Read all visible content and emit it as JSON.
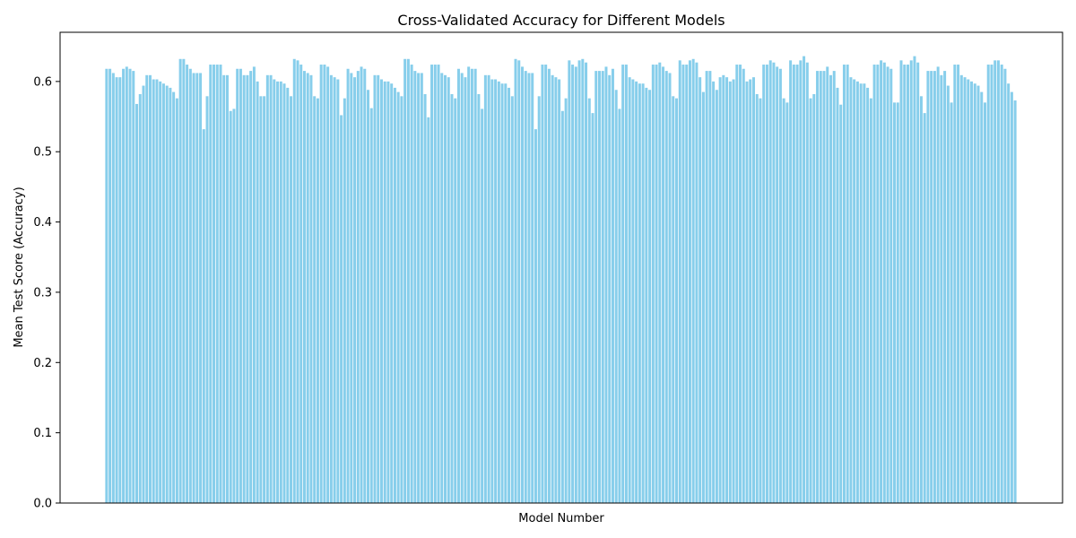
{
  "chart_data": {
    "type": "bar",
    "title": "Cross-Validated Accuracy for Different Models",
    "xlabel": "Model Number",
    "ylabel": "Mean Test Score (Accuracy)",
    "ylim": [
      0,
      0.67
    ],
    "yticks": [
      "0.0",
      "0.1",
      "0.2",
      "0.3",
      "0.4",
      "0.5",
      "0.6"
    ],
    "grid": false,
    "legend": "none",
    "bar_color": "#87CEEB",
    "values": [
      0.618,
      0.618,
      0.612,
      0.606,
      0.606,
      0.618,
      0.621,
      0.618,
      0.615,
      0.568,
      0.582,
      0.594,
      0.609,
      0.609,
      0.603,
      0.603,
      0.6,
      0.597,
      0.594,
      0.591,
      0.585,
      0.576,
      0.632,
      0.632,
      0.624,
      0.618,
      0.612,
      0.612,
      0.612,
      0.532,
      0.579,
      0.624,
      0.624,
      0.624,
      0.624,
      0.609,
      0.609,
      0.558,
      0.561,
      0.618,
      0.618,
      0.609,
      0.609,
      0.615,
      0.621,
      0.6,
      0.579,
      0.579,
      0.609,
      0.609,
      0.603,
      0.6,
      0.6,
      0.597,
      0.591,
      0.579,
      0.632,
      0.63,
      0.624,
      0.615,
      0.612,
      0.609,
      0.579,
      0.576,
      0.624,
      0.624,
      0.621,
      0.609,
      0.606,
      0.603,
      0.552,
      0.576,
      0.618,
      0.612,
      0.606,
      0.615,
      0.621,
      0.618,
      0.588,
      0.562,
      0.609,
      0.609,
      0.603,
      0.6,
      0.6,
      0.597,
      0.591,
      0.585,
      0.579,
      0.632,
      0.632,
      0.624,
      0.615,
      0.612,
      0.612,
      0.582,
      0.549,
      0.624,
      0.624,
      0.624,
      0.612,
      0.609,
      0.606,
      0.582,
      0.576,
      0.618,
      0.612,
      0.606,
      0.621,
      0.618,
      0.618,
      0.582,
      0.561,
      0.609,
      0.609,
      0.603,
      0.603,
      0.6,
      0.597,
      0.597,
      0.591,
      0.579,
      0.632,
      0.63,
      0.621,
      0.615,
      0.612,
      0.612,
      0.532,
      0.579,
      0.624,
      0.624,
      0.618,
      0.609,
      0.606,
      0.603,
      0.558,
      0.576,
      0.63,
      0.624,
      0.621,
      0.63,
      0.632,
      0.627,
      0.576,
      0.555,
      0.615,
      0.615,
      0.615,
      0.621,
      0.609,
      0.618,
      0.588,
      0.561,
      0.624,
      0.624,
      0.606,
      0.603,
      0.6,
      0.597,
      0.597,
      0.591,
      0.588,
      0.624,
      0.624,
      0.627,
      0.621,
      0.615,
      0.612,
      0.579,
      0.576,
      0.63,
      0.624,
      0.624,
      0.63,
      0.632,
      0.627,
      0.606,
      0.585,
      0.615,
      0.615,
      0.6,
      0.588,
      0.606,
      0.609,
      0.606,
      0.6,
      0.603,
      0.624,
      0.624,
      0.618,
      0.6,
      0.603,
      0.606,
      0.582,
      0.576,
      0.624,
      0.624,
      0.63,
      0.627,
      0.621,
      0.618,
      0.576,
      0.57,
      0.63,
      0.624,
      0.624,
      0.63,
      0.636,
      0.627,
      0.576,
      0.582,
      0.615,
      0.615,
      0.615,
      0.621,
      0.609,
      0.615,
      0.591,
      0.567,
      0.624,
      0.624,
      0.606,
      0.603,
      0.6,
      0.597,
      0.597,
      0.591,
      0.576,
      0.624,
      0.624,
      0.63,
      0.627,
      0.621,
      0.618,
      0.57,
      0.57,
      0.63,
      0.624,
      0.624,
      0.63,
      0.636,
      0.627,
      0.579,
      0.555,
      0.615,
      0.615,
      0.615,
      0.621,
      0.609,
      0.615,
      0.594,
      0.57,
      0.624,
      0.624,
      0.609,
      0.606,
      0.603,
      0.6,
      0.597,
      0.594,
      0.585,
      0.57,
      0.624,
      0.624,
      0.63,
      0.63,
      0.624,
      0.618,
      0.597,
      0.585,
      0.573
    ]
  }
}
